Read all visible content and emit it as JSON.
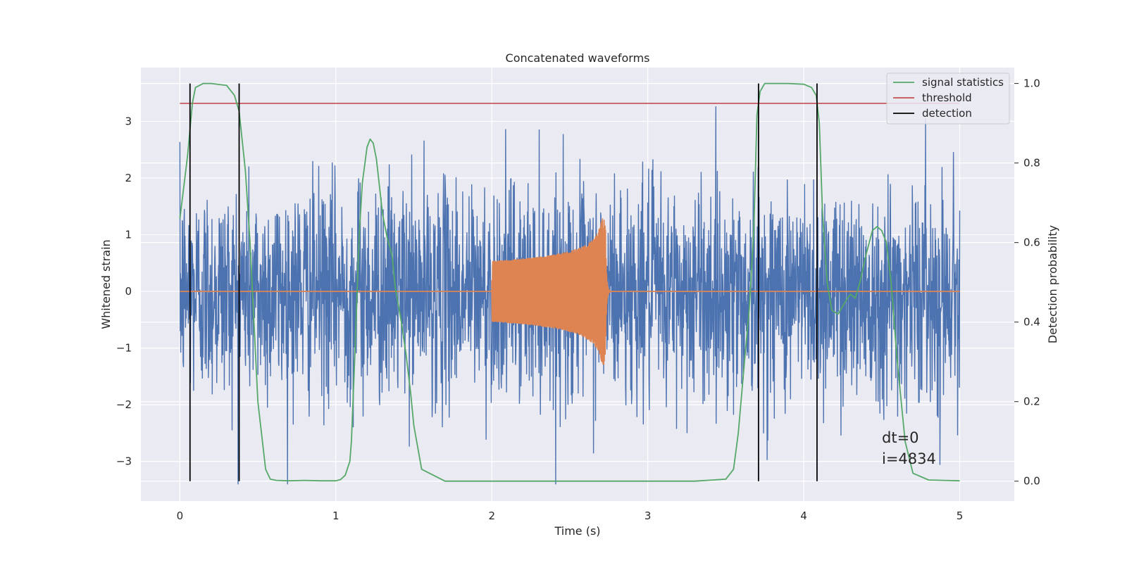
{
  "chart_data": {
    "type": "line",
    "title": "Concatenated waveforms",
    "xlabel": "Time (s)",
    "ylabel": "Whitened strain",
    "ylabel_right": "Detection probability",
    "xlim": [
      -0.25,
      5.35
    ],
    "ylim": [
      -3.7,
      3.95
    ],
    "ylim_right": [
      -0.05,
      1.04
    ],
    "xticks": [
      0,
      1,
      2,
      3,
      4,
      5
    ],
    "yticks": [
      -3,
      -2,
      -1,
      0,
      1,
      2,
      3
    ],
    "yticks_right": [
      0.0,
      0.2,
      0.4,
      0.6,
      0.8,
      1.0
    ],
    "xtick_labels": [
      "0",
      "1",
      "2",
      "3",
      "4",
      "5"
    ],
    "ytick_labels": [
      "−3",
      "−2",
      "−1",
      "0",
      "1",
      "2",
      "3"
    ],
    "ytick_right_labels": [
      "0.0",
      "0.2",
      "0.4",
      "0.6",
      "0.8",
      "1.0"
    ],
    "grid": true,
    "legend_position": "top-right",
    "colors": {
      "strain": "#4c72b0",
      "template": "#dd8452",
      "signal_statistics": "#55a868",
      "threshold": "#c44e52",
      "detection": "#000000",
      "plot_bg": "#eaeaf2",
      "grid": "#ffffff"
    },
    "series": [
      {
        "name": "signal statistics",
        "axis": "right",
        "x": [
          0.0,
          0.05,
          0.08,
          0.1,
          0.15,
          0.2,
          0.3,
          0.35,
          0.38,
          0.42,
          0.45,
          0.5,
          0.55,
          0.58,
          0.62,
          0.7,
          0.8,
          0.9,
          1.0,
          1.03,
          1.06,
          1.09,
          1.1,
          1.12,
          1.15,
          1.17,
          1.2,
          1.22,
          1.24,
          1.26,
          1.3,
          1.33,
          1.36,
          1.38,
          1.42,
          1.45,
          1.48,
          1.5,
          1.55,
          1.7,
          2.0,
          2.5,
          3.0,
          3.3,
          3.5,
          3.55,
          3.58,
          3.62,
          3.65,
          3.68,
          3.7,
          3.72,
          3.75,
          3.8,
          3.9,
          4.0,
          4.05,
          4.08,
          4.1,
          4.12,
          4.15,
          4.18,
          4.22,
          4.25,
          4.28,
          4.3,
          4.33,
          4.36,
          4.4,
          4.44,
          4.47,
          4.5,
          4.53,
          4.56,
          4.6,
          4.65,
          4.7,
          4.8,
          4.9,
          5.0
        ],
        "y": [
          0.66,
          0.82,
          0.95,
          0.99,
          1.0,
          1.0,
          0.995,
          0.97,
          0.93,
          0.78,
          0.6,
          0.2,
          0.03,
          0.005,
          0.002,
          0.001,
          0.002,
          0.001,
          0.001,
          0.004,
          0.015,
          0.05,
          0.1,
          0.3,
          0.62,
          0.75,
          0.84,
          0.86,
          0.85,
          0.81,
          0.67,
          0.61,
          0.57,
          0.49,
          0.4,
          0.32,
          0.22,
          0.14,
          0.03,
          0.0,
          0.0,
          0.0,
          0.0,
          0.0,
          0.005,
          0.03,
          0.12,
          0.3,
          0.43,
          0.63,
          0.92,
          0.98,
          1.0,
          1.0,
          1.0,
          0.998,
          0.99,
          0.97,
          0.9,
          0.68,
          0.5,
          0.43,
          0.42,
          0.44,
          0.46,
          0.47,
          0.46,
          0.5,
          0.57,
          0.63,
          0.64,
          0.63,
          0.6,
          0.5,
          0.3,
          0.1,
          0.02,
          0.003,
          0.002,
          0.001
        ]
      },
      {
        "name": "threshold",
        "axis": "right",
        "x": [
          0.0,
          5.0
        ],
        "y": [
          0.95,
          0.95
        ]
      },
      {
        "name": "detection",
        "axis": "right",
        "x": [
          0.065,
          0.38,
          3.71,
          4.085
        ],
        "y_range": [
          0.0,
          1.0
        ]
      },
      {
        "name": "",
        "axis": "left",
        "x_range": [
          0.0,
          5.0
        ],
        "envelope_y": [
          -1.4,
          1.4
        ],
        "peak_range": [
          -3.4,
          3.35
        ]
      },
      {
        "name": "",
        "axis": "left",
        "chirp_start": 2.0,
        "chirp_end": 2.72,
        "peak_amplitude": 1.3,
        "x_range": [
          0.0,
          5.0
        ]
      }
    ],
    "annotations": [
      "dt=0",
      "i=4834"
    ]
  }
}
